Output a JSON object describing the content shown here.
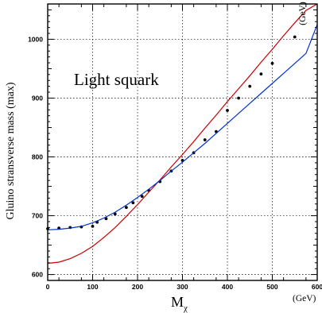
{
  "chart_data": {
    "type": "line",
    "title": "",
    "annotation": "Light squark",
    "xlabel": "M",
    "xlabel_sub": "χ",
    "xunit": "(GeV)",
    "ylabel": "Gluino stransverse mass (max)",
    "yunit": "(GeV)",
    "xlim": [
      0,
      600
    ],
    "ylim": [
      590,
      1060
    ],
    "x_ticks": [
      0,
      100,
      200,
      300,
      400,
      500,
      600
    ],
    "y_ticks": [
      600,
      700,
      800,
      900,
      1000
    ],
    "grid": true,
    "series": [
      {
        "kind": "points",
        "color": "#000000",
        "points": [
          [
            0,
            678
          ],
          [
            25,
            679
          ],
          [
            50,
            680
          ],
          [
            75,
            681
          ],
          [
            100,
            682
          ],
          [
            110,
            689
          ],
          [
            130,
            695
          ],
          [
            150,
            703
          ],
          [
            175,
            714
          ],
          [
            190,
            722
          ],
          [
            210,
            733
          ],
          [
            225,
            743
          ],
          [
            250,
            758
          ],
          [
            275,
            776
          ],
          [
            300,
            794
          ],
          [
            325,
            807
          ],
          [
            350,
            829
          ],
          [
            375,
            843
          ],
          [
            400,
            879
          ],
          [
            425,
            900
          ],
          [
            450,
            920
          ],
          [
            475,
            941
          ],
          [
            500,
            959
          ],
          [
            550,
            1004
          ]
        ]
      },
      {
        "kind": "curve",
        "color": "#cc0000",
        "points": [
          [
            0,
            619
          ],
          [
            25,
            621
          ],
          [
            50,
            627
          ],
          [
            75,
            636
          ],
          [
            100,
            648
          ],
          [
            125,
            663
          ],
          [
            150,
            680
          ],
          [
            175,
            699
          ],
          [
            200,
            719
          ],
          [
            225,
            740
          ],
          [
            250,
            761
          ],
          [
            275,
            783
          ],
          [
            300,
            804
          ],
          [
            325,
            826
          ],
          [
            350,
            849
          ],
          [
            375,
            871
          ],
          [
            400,
            894
          ],
          [
            425,
            916
          ],
          [
            450,
            938
          ],
          [
            475,
            961
          ],
          [
            500,
            983
          ],
          [
            525,
            1006
          ],
          [
            550,
            1028
          ],
          [
            575,
            1049
          ],
          [
            600,
            1060
          ]
        ]
      },
      {
        "kind": "curve",
        "color": "#0033cc",
        "points": [
          [
            0,
            676
          ],
          [
            25,
            677
          ],
          [
            50,
            679
          ],
          [
            75,
            682
          ],
          [
            100,
            688
          ],
          [
            125,
            696
          ],
          [
            150,
            706
          ],
          [
            175,
            718
          ],
          [
            200,
            731
          ],
          [
            225,
            745
          ],
          [
            250,
            760
          ],
          [
            275,
            776
          ],
          [
            300,
            791
          ],
          [
            325,
            807
          ],
          [
            350,
            823
          ],
          [
            375,
            840
          ],
          [
            400,
            857
          ],
          [
            425,
            874
          ],
          [
            450,
            891
          ],
          [
            475,
            908
          ],
          [
            500,
            925
          ],
          [
            525,
            942
          ],
          [
            550,
            959
          ],
          [
            575,
            976
          ],
          [
            600,
            1025
          ]
        ]
      }
    ]
  }
}
